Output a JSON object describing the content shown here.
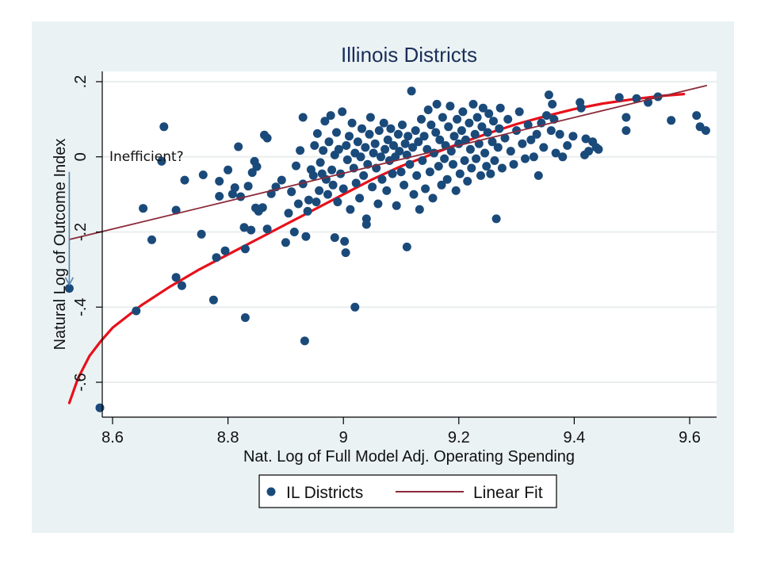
{
  "chart_data": {
    "type": "scatter",
    "title": "Illinois Districts",
    "xlabel": "Nat. Log of Full Model Adj. Operating Spending",
    "ylabel": "Natural Log of Outcome Index",
    "xlim": [
      8.52,
      9.65
    ],
    "ylim": [
      -0.69,
      0.22
    ],
    "xticks": [
      8.6,
      8.8,
      9.0,
      9.2,
      9.4,
      9.6
    ],
    "xtick_labels": [
      "8.6",
      "8.8",
      "9",
      "9.2",
      "9.4",
      "9.6"
    ],
    "yticks": [
      0.2,
      0.0,
      -0.2,
      -0.4,
      -0.6
    ],
    "ytick_labels": [
      ".2",
      "0",
      "-.2",
      "-.4",
      "-.6"
    ],
    "grid": true,
    "legend": {
      "placement": "bottom",
      "entries": [
        {
          "label": "IL Districts",
          "kind": "marker"
        },
        {
          "label": "Linear Fit",
          "kind": "line"
        }
      ]
    },
    "colors": {
      "points": "#1a4a7a",
      "linear_fit": "#8b2a3a",
      "curve_fit": "#e8101a",
      "annotation_arrow": "#5b84b1",
      "title": "#1a2e5a",
      "frame_bg": "#eaf2f3",
      "plot_bg": "#ffffff",
      "grid": "#eaeeef"
    },
    "annotation": {
      "text": "Inefficient?",
      "arrow_from": [
        8.525,
        -0.04
      ],
      "arrow_to": [
        8.525,
        -0.34
      ]
    },
    "series": [
      {
        "name": "IL Districts",
        "kind": "scatter",
        "points": [
          [
            8.525,
            -0.35
          ],
          [
            8.578,
            -0.668
          ],
          [
            8.641,
            -0.41
          ],
          [
            8.653,
            -0.137
          ],
          [
            8.668,
            -0.221
          ],
          [
            8.685,
            -0.012
          ],
          [
            8.689,
            0.08
          ],
          [
            8.71,
            -0.321
          ],
          [
            8.71,
            -0.142
          ],
          [
            8.72,
            -0.343
          ],
          [
            8.725,
            -0.062
          ],
          [
            8.754,
            -0.206
          ],
          [
            8.757,
            -0.048
          ],
          [
            8.775,
            -0.381
          ],
          [
            8.78,
            -0.268
          ],
          [
            8.785,
            -0.105
          ],
          [
            8.785,
            -0.065
          ],
          [
            8.795,
            -0.25
          ],
          [
            8.8,
            -0.035
          ],
          [
            8.808,
            -0.099
          ],
          [
            8.812,
            -0.082
          ],
          [
            8.818,
            0.027
          ],
          [
            8.822,
            -0.106
          ],
          [
            8.828,
            -0.188
          ],
          [
            8.83,
            -0.428
          ],
          [
            8.83,
            -0.245
          ],
          [
            8.835,
            -0.078
          ],
          [
            8.84,
            -0.195
          ],
          [
            8.842,
            -0.042
          ],
          [
            8.846,
            -0.012
          ],
          [
            8.848,
            -0.136
          ],
          [
            8.85,
            -0.026
          ],
          [
            8.853,
            -0.145
          ],
          [
            8.86,
            -0.135
          ],
          [
            8.863,
            0.058
          ],
          [
            8.868,
            0.05
          ],
          [
            8.868,
            -0.192
          ],
          [
            8.875,
            -0.098
          ],
          [
            8.883,
            -0.08
          ],
          [
            8.893,
            -0.062
          ],
          [
            8.9,
            -0.228
          ],
          [
            8.905,
            -0.15
          ],
          [
            8.91,
            -0.093
          ],
          [
            8.915,
            -0.2
          ],
          [
            8.918,
            -0.024
          ],
          [
            8.922,
            -0.125
          ],
          [
            8.925,
            0.017
          ],
          [
            8.93,
            -0.072
          ],
          [
            8.93,
            0.105
          ],
          [
            8.933,
            -0.49
          ],
          [
            8.935,
            -0.212
          ],
          [
            8.938,
            -0.145
          ],
          [
            8.94,
            -0.115
          ],
          [
            8.944,
            -0.034
          ],
          [
            8.948,
            -0.05
          ],
          [
            8.95,
            0.03
          ],
          [
            8.953,
            -0.12
          ],
          [
            8.955,
            0.062
          ],
          [
            8.958,
            -0.09
          ],
          [
            8.96,
            -0.015
          ],
          [
            8.963,
            -0.045
          ],
          [
            8.965,
            0.017
          ],
          [
            8.968,
            0.095
          ],
          [
            8.97,
            -0.06
          ],
          [
            8.973,
            -0.1
          ],
          [
            8.975,
            0.04
          ],
          [
            8.978,
            0.11
          ],
          [
            8.98,
            -0.035
          ],
          [
            8.982,
            -0.075
          ],
          [
            8.985,
            0.005
          ],
          [
            8.985,
            -0.215
          ],
          [
            8.988,
            0.065
          ],
          [
            8.99,
            -0.12
          ],
          [
            8.992,
            0.02
          ],
          [
            8.995,
            -0.045
          ],
          [
            8.998,
            0.12
          ],
          [
            9.0,
            -0.085
          ],
          [
            9.002,
            -0.225
          ],
          [
            9.004,
            -0.255
          ],
          [
            9.005,
            0.03
          ],
          [
            9.007,
            -0.008
          ],
          [
            9.01,
            0.055
          ],
          [
            9.012,
            -0.14
          ],
          [
            9.015,
            0.09
          ],
          [
            9.018,
            -0.03
          ],
          [
            9.02,
            -0.4
          ],
          [
            9.02,
            0.01
          ],
          [
            9.022,
            -0.07
          ],
          [
            9.025,
            0.04
          ],
          [
            9.028,
            -0.11
          ],
          [
            9.03,
            0.0
          ],
          [
            9.032,
            0.075
          ],
          [
            9.035,
            -0.05
          ],
          [
            9.038,
            0.025
          ],
          [
            9.04,
            -0.18
          ],
          [
            9.04,
            -0.165
          ],
          [
            9.042,
            -0.02
          ],
          [
            9.045,
            0.06
          ],
          [
            9.047,
            0.105
          ],
          [
            9.05,
            -0.08
          ],
          [
            9.052,
            0.01
          ],
          [
            9.055,
            0.035
          ],
          [
            9.057,
            -0.03
          ],
          [
            9.06,
            -0.125
          ],
          [
            9.062,
            0.07
          ],
          [
            9.065,
            0.0
          ],
          [
            9.067,
            -0.06
          ],
          [
            9.07,
            0.09
          ],
          [
            9.072,
            0.02
          ],
          [
            9.075,
            -0.09
          ],
          [
            9.077,
            0.045
          ],
          [
            9.08,
            -0.01
          ],
          [
            9.082,
            0.075
          ],
          [
            9.085,
            -0.045
          ],
          [
            9.087,
            0.03
          ],
          [
            9.09,
            0.0
          ],
          [
            9.092,
            -0.13
          ],
          [
            9.095,
            0.06
          ],
          [
            9.097,
            0.015
          ],
          [
            9.1,
            -0.04
          ],
          [
            9.102,
            0.085
          ],
          [
            9.105,
            -0.075
          ],
          [
            9.107,
            0.035
          ],
          [
            9.11,
            -0.24
          ],
          [
            9.11,
            0.005
          ],
          [
            9.112,
            0.055
          ],
          [
            9.115,
            -0.02
          ],
          [
            9.118,
            0.175
          ],
          [
            9.12,
            0.025
          ],
          [
            9.122,
            -0.1
          ],
          [
            9.125,
            0.07
          ],
          [
            9.127,
            -0.05
          ],
          [
            9.13,
            0.04
          ],
          [
            9.132,
            -0.14
          ],
          [
            9.135,
            0.1
          ],
          [
            9.137,
            -0.01
          ],
          [
            9.14,
            0.055
          ],
          [
            9.142,
            -0.085
          ],
          [
            9.145,
            0.02
          ],
          [
            9.147,
            0.125
          ],
          [
            9.15,
            -0.04
          ],
          [
            9.152,
            0.085
          ],
          [
            9.155,
            -0.11
          ],
          [
            9.157,
            0.01
          ],
          [
            9.16,
            0.065
          ],
          [
            9.162,
            0.14
          ],
          [
            9.165,
            -0.025
          ],
          [
            9.167,
            0.045
          ],
          [
            9.17,
            -0.075
          ],
          [
            9.172,
            0.105
          ],
          [
            9.175,
            -0.005
          ],
          [
            9.177,
            0.03
          ],
          [
            9.18,
            -0.06
          ],
          [
            9.182,
            0.08
          ],
          [
            9.185,
            0.135
          ],
          [
            9.187,
            0.015
          ],
          [
            9.19,
            -0.02
          ],
          [
            9.192,
            0.055
          ],
          [
            9.195,
            -0.09
          ],
          [
            9.197,
            0.1
          ],
          [
            9.2,
            0.035
          ],
          [
            9.202,
            -0.045
          ],
          [
            9.205,
            0.07
          ],
          [
            9.207,
            0.12
          ],
          [
            9.21,
            -0.01
          ],
          [
            9.212,
            0.045
          ],
          [
            9.215,
            -0.065
          ],
          [
            9.218,
            0.09
          ],
          [
            9.22,
            0.02
          ],
          [
            9.222,
            -0.03
          ],
          [
            9.225,
            0.14
          ],
          [
            9.228,
            0.06
          ],
          [
            9.23,
            -0.005
          ],
          [
            9.232,
            0.105
          ],
          [
            9.235,
            0.035
          ],
          [
            9.238,
            -0.05
          ],
          [
            9.24,
            0.08
          ],
          [
            9.242,
            0.13
          ],
          [
            9.245,
            0.01
          ],
          [
            9.248,
            -0.025
          ],
          [
            9.25,
            0.065
          ],
          [
            9.252,
            0.115
          ],
          [
            9.255,
            -0.045
          ],
          [
            9.258,
            0.04
          ],
          [
            9.26,
            0.095
          ],
          [
            9.262,
            -0.01
          ],
          [
            9.265,
            -0.165
          ],
          [
            9.268,
            0.025
          ],
          [
            9.27,
            0.075
          ],
          [
            9.272,
            0.13
          ],
          [
            9.275,
            -0.03
          ],
          [
            9.28,
            0.05
          ],
          [
            9.285,
            0.1
          ],
          [
            9.29,
            0.015
          ],
          [
            9.295,
            -0.02
          ],
          [
            9.3,
            0.07
          ],
          [
            9.305,
            0.12
          ],
          [
            9.31,
            0.035
          ],
          [
            9.315,
            -0.005
          ],
          [
            9.32,
            0.085
          ],
          [
            9.325,
            0.045
          ],
          [
            9.33,
            0.0
          ],
          [
            9.335,
            0.06
          ],
          [
            9.338,
            -0.05
          ],
          [
            9.343,
            0.09
          ],
          [
            9.347,
            0.025
          ],
          [
            9.352,
            0.11
          ],
          [
            9.356,
            0.165
          ],
          [
            9.36,
            0.07
          ],
          [
            9.362,
            0.14
          ],
          [
            9.365,
            0.1
          ],
          [
            9.368,
            0.01
          ],
          [
            9.375,
            0.06
          ],
          [
            9.38,
            0.0
          ],
          [
            9.388,
            0.03
          ],
          [
            9.398,
            0.055
          ],
          [
            9.41,
            0.145
          ],
          [
            9.412,
            0.13
          ],
          [
            9.418,
            0.005
          ],
          [
            9.42,
            0.048
          ],
          [
            9.425,
            0.015
          ],
          [
            9.432,
            0.04
          ],
          [
            9.438,
            0.025
          ],
          [
            9.442,
            0.02
          ],
          [
            9.478,
            0.158
          ],
          [
            9.49,
            0.105
          ],
          [
            9.49,
            0.07
          ],
          [
            9.508,
            0.155
          ],
          [
            9.528,
            0.145
          ],
          [
            9.545,
            0.16
          ],
          [
            9.568,
            0.097
          ],
          [
            9.612,
            0.11
          ],
          [
            9.618,
            0.08
          ],
          [
            9.628,
            0.07
          ]
        ]
      },
      {
        "name": "Linear Fit",
        "kind": "line",
        "points": [
          [
            8.525,
            -0.22
          ],
          [
            9.63,
            0.19
          ]
        ]
      },
      {
        "name": "Nonlinear Fit",
        "kind": "line",
        "points": [
          [
            8.525,
            -0.655
          ],
          [
            8.54,
            -0.59
          ],
          [
            8.56,
            -0.53
          ],
          [
            8.58,
            -0.49
          ],
          [
            8.6,
            -0.455
          ],
          [
            8.65,
            -0.395
          ],
          [
            8.7,
            -0.345
          ],
          [
            8.75,
            -0.3
          ],
          [
            8.8,
            -0.26
          ],
          [
            8.85,
            -0.22
          ],
          [
            8.9,
            -0.18
          ],
          [
            8.95,
            -0.14
          ],
          [
            9.0,
            -0.1
          ],
          [
            9.05,
            -0.06
          ],
          [
            9.1,
            -0.025
          ],
          [
            9.15,
            0.005
          ],
          [
            9.2,
            0.035
          ],
          [
            9.25,
            0.062
          ],
          [
            9.3,
            0.087
          ],
          [
            9.35,
            0.108
          ],
          [
            9.4,
            0.127
          ],
          [
            9.45,
            0.142
          ],
          [
            9.5,
            0.153
          ],
          [
            9.55,
            0.162
          ],
          [
            9.59,
            0.167
          ]
        ]
      }
    ]
  }
}
